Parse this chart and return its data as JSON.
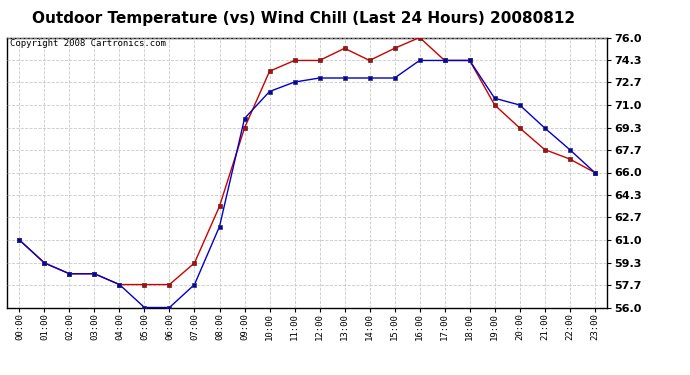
{
  "title": "Outdoor Temperature (vs) Wind Chill (Last 24 Hours) 20080812",
  "copyright": "Copyright 2008 Cartronics.com",
  "x_labels": [
    "00:00",
    "01:00",
    "02:00",
    "03:00",
    "04:00",
    "05:00",
    "06:00",
    "07:00",
    "08:00",
    "09:00",
    "10:00",
    "11:00",
    "12:00",
    "13:00",
    "14:00",
    "15:00",
    "16:00",
    "17:00",
    "18:00",
    "19:00",
    "20:00",
    "21:00",
    "22:00",
    "23:00"
  ],
  "temp_red": [
    61.0,
    59.3,
    58.5,
    58.5,
    57.7,
    57.7,
    57.7,
    59.3,
    63.5,
    69.3,
    73.5,
    74.3,
    74.3,
    75.2,
    74.3,
    75.2,
    76.0,
    74.3,
    74.3,
    71.0,
    69.3,
    67.7,
    67.0,
    66.0
  ],
  "wind_blue": [
    61.0,
    59.3,
    58.5,
    58.5,
    57.7,
    56.0,
    56.0,
    57.7,
    62.0,
    70.0,
    72.0,
    72.7,
    73.0,
    73.0,
    73.0,
    73.0,
    74.3,
    74.3,
    74.3,
    71.5,
    71.0,
    69.3,
    67.7,
    66.0
  ],
  "ylim": [
    56.0,
    76.0
  ],
  "yticks": [
    56.0,
    57.7,
    59.3,
    61.0,
    62.7,
    64.3,
    66.0,
    67.7,
    69.3,
    71.0,
    72.7,
    74.3,
    76.0
  ],
  "bg_color": "#ffffff",
  "plot_bg": "#ffffff",
  "red_color": "#cc0000",
  "blue_color": "#0000cc",
  "grid_color": "#bbbbbb",
  "title_fontsize": 11,
  "copyright_fontsize": 6.5
}
